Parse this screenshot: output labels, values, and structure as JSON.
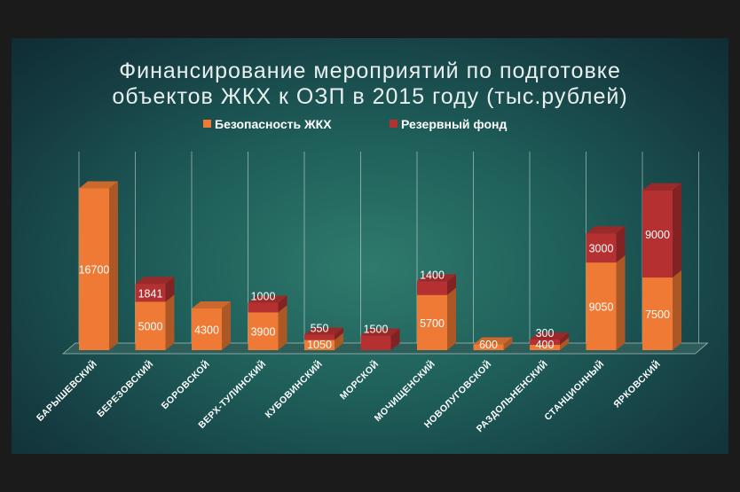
{
  "chart_data": {
    "type": "bar",
    "stacked": true,
    "title": "Финансирование мероприятий по подготовке объектов ЖКХ к ОЗП в 2015 году (тыс.рублей)",
    "title_lines": [
      "Финансирование мероприятий по подготовке",
      "объектов ЖКХ к ОЗП в 2015 году (тыс.рублей)"
    ],
    "categories": [
      "БАРЫШЕВСКИЙ",
      "БЕРЕЗОВСКИЙ",
      "БОРОВСКОЙ",
      "ВЕРХ-ТУЛИНСКИЙ",
      "КУБОВИНСКИЙ",
      "МОРСКОЙ",
      "МОЧИЩЕНСКИЙ",
      "НОВОЛУГОВСКОЙ",
      "РАЗДОЛЬНЕНСКИЙ",
      "СТАНЦИОННЫЙ",
      "ЯРКОВСКИЙ"
    ],
    "series": [
      {
        "name": "Безопасность ЖКХ",
        "color": "#ee7a35",
        "values": [
          16700,
          5000,
          4300,
          3900,
          1050,
          0,
          5700,
          600,
          400,
          9050,
          7500
        ]
      },
      {
        "name": "Резервный фонд",
        "color": "#b53131",
        "values": [
          0,
          1841,
          0,
          1000,
          550,
          1500,
          1400,
          0,
          300,
          3000,
          9000
        ]
      }
    ],
    "data_labels": [
      [
        "16700",
        "5000",
        "4300",
        "3900",
        "1050",
        "",
        "5700",
        "600",
        "400",
        "9050",
        "7500"
      ],
      [
        "",
        "1841",
        "",
        "1000",
        "550",
        "1500",
        "1400",
        "",
        "300",
        "3000",
        "9000"
      ]
    ],
    "legend_position": "top",
    "grid": true,
    "perspective_3d": true
  }
}
